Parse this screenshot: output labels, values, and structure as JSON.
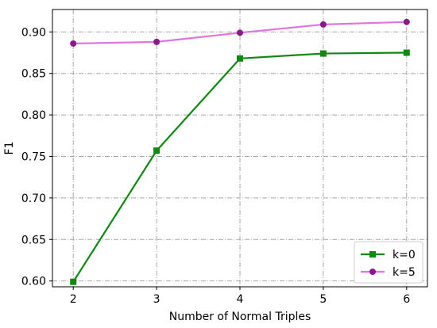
{
  "chart_data": {
    "type": "line",
    "title": "",
    "xlabel": "Number of Normal Triples",
    "ylabel": "F1",
    "x": [
      2,
      3,
      4,
      5,
      6
    ],
    "x_ticks": [
      "2",
      "3",
      "4",
      "5",
      "6"
    ],
    "y_ticks": [
      "0.60",
      "0.65",
      "0.70",
      "0.75",
      "0.80",
      "0.85",
      "0.90"
    ],
    "xlim": [
      1.75,
      6.25
    ],
    "ylim": [
      0.593,
      0.927
    ],
    "grid": true,
    "legend_position": "lower-right",
    "series": [
      {
        "name": "k=0",
        "values": [
          0.599,
          0.757,
          0.868,
          0.874,
          0.875
        ],
        "color": "#118811",
        "marker": "square"
      },
      {
        "name": "k=5",
        "values": [
          0.886,
          0.888,
          0.899,
          0.909,
          0.912
        ],
        "color": "#dd77dd",
        "marker": "circle",
        "marker_color": "#8a1a8a"
      }
    ]
  }
}
